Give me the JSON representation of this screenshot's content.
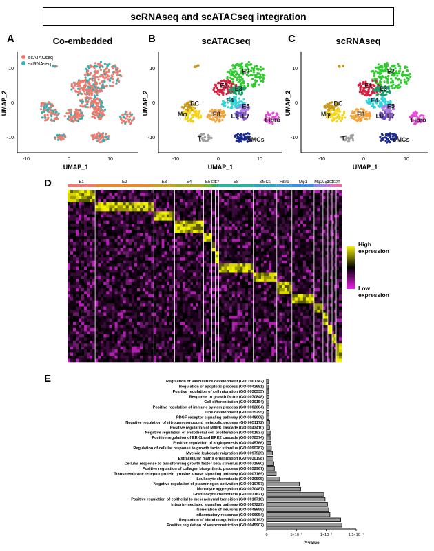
{
  "title": "scRNAseq and scATACseq integration",
  "panels": {
    "A": {
      "letter": "A",
      "title": "Co-embedded",
      "legend": [
        "scATACseq",
        "scRNAseq"
      ],
      "xlabel": "UMAP_1",
      "ylabel": "UMAP_2",
      "xticks": [
        "-10",
        "0",
        "10"
      ],
      "yticks": [
        "10",
        "0",
        "-10"
      ]
    },
    "B": {
      "letter": "B",
      "title": "scATACseq",
      "xlabel": "UMAP_1",
      "ylabel": "UMAP_2",
      "xticks": [
        "-10",
        "0",
        "10"
      ],
      "yticks": [
        "10",
        "0",
        "-10"
      ]
    },
    "C": {
      "letter": "C",
      "title": "scRNAseq",
      "xlabel": "UMAP_1",
      "ylabel": "UMAP_2",
      "xticks": [
        "-10",
        "0",
        "10"
      ],
      "yticks": [
        "10",
        "0",
        "-10"
      ]
    },
    "D": {
      "letter": "D"
    },
    "E": {
      "letter": "E"
    }
  },
  "cluster_labels": [
    "E1",
    "E2",
    "E3",
    "E4",
    "E5",
    "E6",
    "E7",
    "E8",
    "DC",
    "Mφ",
    "Fibro",
    "T",
    "SMCs"
  ],
  "colors": {
    "scATACseq": "#f07a6e",
    "scRNAseq": "#2bb3b5",
    "E1": "#d81e3f",
    "E2": "#2ecc2e",
    "E3": "#1a9e6b",
    "E4": "#2fd3d8",
    "E5": "#b07fe8",
    "E6": "#6a4fc7",
    "E7": "#8a5ac8",
    "E8": "#f2a33a",
    "DC": "#c89a1e",
    "Mφ": "#f5d418",
    "Fibro": "#e64ad6",
    "T": "#a0a0a0",
    "SMCs": "#1a2a8c"
  },
  "heatmap": {
    "groups": [
      {
        "name": "E1",
        "color": "#f07a6e",
        "w": 40
      },
      {
        "name": "E2",
        "color": "#e88a2c",
        "w": 85
      },
      {
        "name": "E3",
        "color": "#c8a21e",
        "w": 30
      },
      {
        "name": "E4",
        "color": "#a7a81e",
        "w": 42
      },
      {
        "name": "E5",
        "color": "#6bb62a",
        "w": 12
      },
      {
        "name": "E6",
        "color": "#2eae4a",
        "w": 5
      },
      {
        "name": "E7",
        "color": "#28b27a",
        "w": 5
      },
      {
        "name": "E8",
        "color": "#26b3a0",
        "w": 50
      },
      {
        "name": "SMCs",
        "color": "#2aa6c2",
        "w": 34
      },
      {
        "name": "Fibro",
        "color": "#3fa0dc",
        "w": 22
      },
      {
        "name": "Mφ1",
        "color": "#3a8fe6",
        "w": 32
      },
      {
        "name": "Mφ2",
        "color": "#8e86e8",
        "w": 13
      },
      {
        "name": "Mφ3",
        "color": "#b47be6",
        "w": 7
      },
      {
        "name": "DC1",
        "color": "#d371d8",
        "w": 6
      },
      {
        "name": "DC2",
        "color": "#e86fc4",
        "w": 6
      },
      {
        "name": "T",
        "color": "#f06aa6",
        "w": 8
      }
    ],
    "scale_high": "High\nexpression",
    "scale_low": "Low\nexpression"
  },
  "go_chart": {
    "xlabel": "P-value",
    "xticks": [
      "0",
      "5×10⁻⁵",
      "1×10⁻⁴",
      "1.5×10⁻⁴"
    ],
    "terms": [
      {
        "label": "Regulation of vasculature development (GO:1901342)",
        "value": 3e-06
      },
      {
        "label": "Regulation of apoptotic process (GO:0042981)",
        "value": 3e-06
      },
      {
        "label": "Positive regulation of cell migration (GO:0030335)",
        "value": 3e-06
      },
      {
        "label": "Response to growth factor (GO:0070848)",
        "value": 4e-06
      },
      {
        "label": "Cell differentiation (GO:0030154)",
        "value": 4e-06
      },
      {
        "label": "Positive regulation of immune system process (GO:0002684)",
        "value": 4e-06
      },
      {
        "label": "Tube development (GO:0035295)",
        "value": 4e-06
      },
      {
        "label": "PDGF receptor signaling pathway (GO:0048008)",
        "value": 4e-06
      },
      {
        "label": "Negative regulation of nitrogen compound metabolic process (GO:0051172)",
        "value": 5e-06
      },
      {
        "label": "Positive regulation of MAPK cascade (GO:0043410)",
        "value": 5e-06
      },
      {
        "label": "Negative regulation of endothelial cell proliferation (GO:0001937)",
        "value": 6e-06
      },
      {
        "label": "Positive regulation of ERK1 and ERK2 cascade (GO:0070374)",
        "value": 6e-06
      },
      {
        "label": "Positive regulation of angiogenesis (GO:0045766)",
        "value": 7e-06
      },
      {
        "label": "Regulation of cellular response to growth factor stimulus (GO:0090287)",
        "value": 8e-06
      },
      {
        "label": "Myeloid leukocyte migration (GO:0097529)",
        "value": 1e-05
      },
      {
        "label": "Extracellular matrix organization (GO:0030198)",
        "value": 1.1e-05
      },
      {
        "label": "Cellular response to transforming growth factor beta stimulus (GO:0071560)",
        "value": 1.2e-05
      },
      {
        "label": "Positive regulation of collagen biosynthetic process (GO:0032967)",
        "value": 1.3e-05
      },
      {
        "label": "Transmembrane receptor protein tyrosine kinase signaling pathway (GO:0007169)",
        "value": 1.6e-05
      },
      {
        "label": "Leukocyte chemotaxis (GO:0030595)",
        "value": 2.2e-05
      },
      {
        "label": "Negative regulation of plasminogen activation (GO:0010757)",
        "value": 5.5e-05
      },
      {
        "label": "Monocyte aggregation (GO:0070487)",
        "value": 5.7e-05
      },
      {
        "label": "Granulocyte chemotaxis (GO:0071621)",
        "value": 9.6e-05
      },
      {
        "label": "Positive regulation of epithelial to mesenchymal transition (GO:0010718)",
        "value": 9.8e-05
      },
      {
        "label": "Integrin-mediated signaling pathway (GO:0007229)",
        "value": 0.000102
      },
      {
        "label": "Generation of neurons (GO:0048699)",
        "value": 0.000104
      },
      {
        "label": "Inflammatory response (GO:0006954)",
        "value": 0.000106
      },
      {
        "label": "Regulation of blood coagulation (GO:0030193)",
        "value": 0.000124
      },
      {
        "label": "Positive regulation of vasoconstriction (GO:0045907)",
        "value": 0.000126
      }
    ]
  },
  "chart_data": {
    "type": "bar",
    "orientation": "horizontal",
    "xlabel": "P-value",
    "xlim": [
      0,
      0.00015
    ],
    "categories": [
      "Regulation of vasculature development (GO:1901342)",
      "Regulation of apoptotic process (GO:0042981)",
      "Positive regulation of cell migration (GO:0030335)",
      "Response to growth factor (GO:0070848)",
      "Cell differentiation (GO:0030154)",
      "Positive regulation of immune system process (GO:0002684)",
      "Tube development (GO:0035295)",
      "PDGF receptor signaling pathway (GO:0048008)",
      "Negative regulation of nitrogen compound metabolic process (GO:0051172)",
      "Positive regulation of MAPK cascade (GO:0043410)",
      "Negative regulation of endothelial cell proliferation (GO:0001937)",
      "Positive regulation of ERK1 and ERK2 cascade (GO:0070374)",
      "Positive regulation of angiogenesis (GO:0045766)",
      "Regulation of cellular response to growth factor stimulus (GO:0090287)",
      "Myeloid leukocyte migration (GO:0097529)",
      "Extracellular matrix organization (GO:0030198)",
      "Cellular response to transforming growth factor beta stimulus (GO:0071560)",
      "Positive regulation of collagen biosynthetic process (GO:0032967)",
      "Transmembrane receptor protein tyrosine kinase signaling pathway (GO:0007169)",
      "Leukocyte chemotaxis (GO:0030595)",
      "Negative regulation of plasminogen activation (GO:0010757)",
      "Monocyte aggregation (GO:0070487)",
      "Granulocyte chemotaxis (GO:0071621)",
      "Positive regulation of epithelial to mesenchymal transition (GO:0010718)",
      "Integrin-mediated signaling pathway (GO:0007229)",
      "Generation of neurons (GO:0048699)",
      "Inflammatory response (GO:0006954)",
      "Regulation of blood coagulation (GO:0030193)",
      "Positive regulation of vasoconstriction (GO:0045907)"
    ],
    "values": [
      3e-06,
      3e-06,
      3e-06,
      4e-06,
      4e-06,
      4e-06,
      4e-06,
      4e-06,
      5e-06,
      5e-06,
      6e-06,
      6e-06,
      7e-06,
      8e-06,
      1e-05,
      1.1e-05,
      1.2e-05,
      1.3e-05,
      1.6e-05,
      2.2e-05,
      5.5e-05,
      5.7e-05,
      9.6e-05,
      9.8e-05,
      0.000102,
      0.000104,
      0.000106,
      0.000124,
      0.000126
    ]
  }
}
